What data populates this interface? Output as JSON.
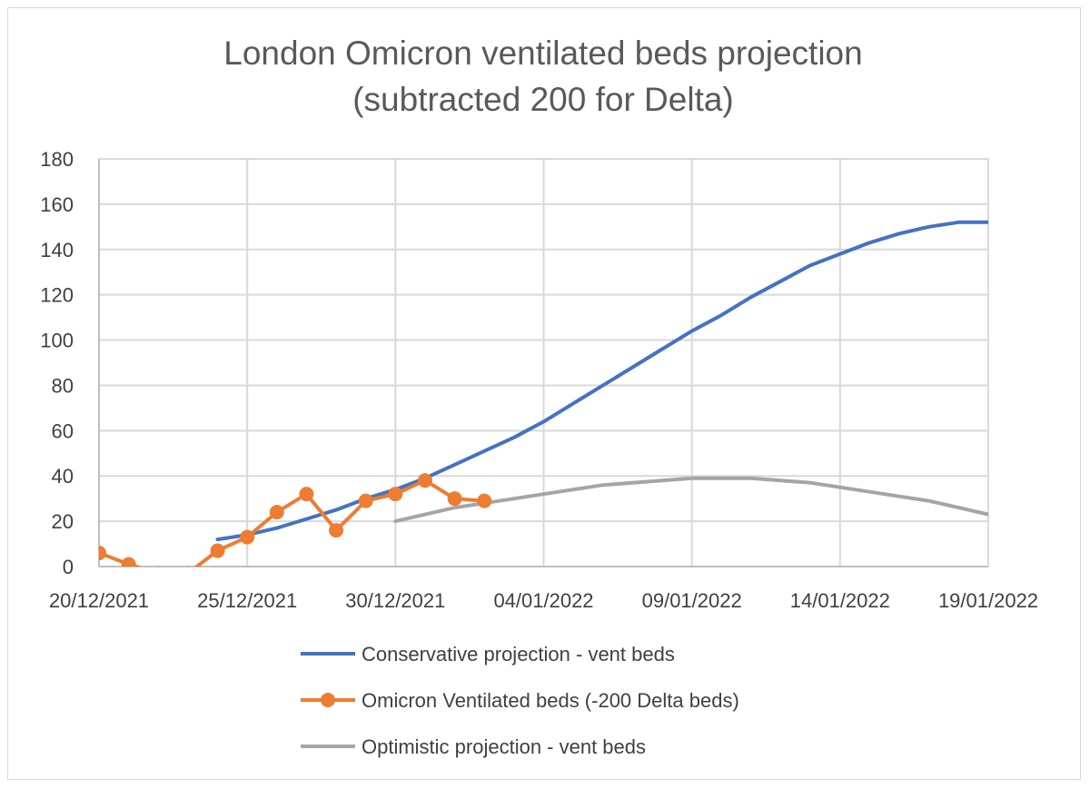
{
  "chart_data": {
    "type": "line",
    "title": [
      "London Omicron ventilated beds projection",
      "(subtracted 200 for Delta)"
    ],
    "xlabel": "",
    "ylabel": "",
    "ylim": [
      0,
      180
    ],
    "y_ticks": [
      0,
      20,
      40,
      60,
      80,
      100,
      120,
      140,
      160,
      180
    ],
    "x_ticks": [
      "2021-12-20",
      "2021-12-25",
      "2021-12-30",
      "2022-01-04",
      "2022-01-09",
      "2022-01-14",
      "2022-01-19"
    ],
    "x_tick_labels": [
      "20/12/2021",
      "25/12/2021",
      "30/12/2021",
      "04/01/2022",
      "09/01/2022",
      "14/01/2022",
      "19/01/2022"
    ],
    "xlim": [
      "2021-12-20",
      "2022-01-19"
    ],
    "grid": true,
    "legend_position": "bottom",
    "series": [
      {
        "name": "Conservative projection - vent beds",
        "color": "#4472c4",
        "markers": false,
        "x": [
          "2021-12-24",
          "2021-12-25",
          "2021-12-26",
          "2021-12-27",
          "2021-12-28",
          "2021-12-29",
          "2021-12-30",
          "2021-12-31",
          "2022-01-01",
          "2022-01-02",
          "2022-01-03",
          "2022-01-04",
          "2022-01-05",
          "2022-01-06",
          "2022-01-07",
          "2022-01-08",
          "2022-01-09",
          "2022-01-10",
          "2022-01-11",
          "2022-01-12",
          "2022-01-13",
          "2022-01-14",
          "2022-01-15",
          "2022-01-16",
          "2022-01-17",
          "2022-01-18",
          "2022-01-19"
        ],
        "values": [
          12,
          14,
          17,
          21,
          25,
          30,
          34,
          39,
          45,
          51,
          57,
          64,
          72,
          80,
          88,
          96,
          104,
          111,
          119,
          126,
          133,
          138,
          143,
          147,
          150,
          152,
          152
        ]
      },
      {
        "name": "Omicron Ventilated beds (-200 Delta beds)",
        "color": "#ed7d31",
        "markers": true,
        "x": [
          "2021-12-20",
          "2021-12-21",
          "2021-12-22",
          "2021-12-23",
          "2021-12-24",
          "2021-12-25",
          "2021-12-26",
          "2021-12-27",
          "2021-12-28",
          "2021-12-29",
          "2021-12-30",
          "2021-12-31",
          "2022-01-01",
          "2022-01-02"
        ],
        "values": [
          6,
          1,
          -3,
          -3,
          7,
          13,
          24,
          32,
          16,
          29,
          32,
          38,
          30,
          29
        ]
      },
      {
        "name": "Optimistic projection - vent beds",
        "color": "#a5a5a5",
        "markers": false,
        "x": [
          "2021-12-30",
          "2021-12-31",
          "2022-01-01",
          "2022-01-02",
          "2022-01-03",
          "2022-01-04",
          "2022-01-05",
          "2022-01-06",
          "2022-01-07",
          "2022-01-08",
          "2022-01-09",
          "2022-01-10",
          "2022-01-11",
          "2022-01-12",
          "2022-01-13",
          "2022-01-14",
          "2022-01-15",
          "2022-01-16",
          "2022-01-17",
          "2022-01-18",
          "2022-01-19"
        ],
        "values": [
          20,
          23,
          26,
          28,
          30,
          32,
          34,
          36,
          37,
          38,
          39,
          39,
          39,
          38,
          37,
          35,
          33,
          31,
          29,
          26,
          23
        ]
      }
    ]
  }
}
